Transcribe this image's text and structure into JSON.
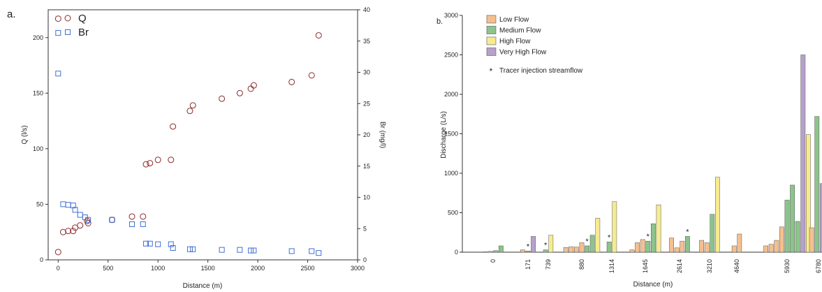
{
  "chart_data": [
    {
      "panel_label": "a.",
      "type": "scatter",
      "xlabel": "Distance (m)",
      "ylabel": "Q (l/s)",
      "y2label": "Br (mg/l)",
      "xlim": [
        -100,
        3000
      ],
      "ylim": [
        0,
        225
      ],
      "y2lim": [
        0,
        40
      ],
      "xticks": [
        0,
        500,
        1000,
        1500,
        2000,
        2500,
        3000
      ],
      "yticks": [
        0,
        50,
        100,
        150,
        200
      ],
      "y2ticks": [
        0,
        5,
        10,
        15,
        20,
        25,
        30,
        35,
        40
      ],
      "legend": "top-left",
      "series": [
        {
          "name": "Q",
          "axis": "left",
          "marker": "circle",
          "color": "#8b2a2a",
          "points": [
            [
              0,
              7
            ],
            [
              0,
              217
            ],
            [
              50,
              25
            ],
            [
              100,
              26
            ],
            [
              150,
              26
            ],
            [
              170,
              29
            ],
            [
              220,
              31
            ],
            [
              290,
              35
            ],
            [
              300,
              33
            ],
            [
              540,
              36
            ],
            [
              740,
              39
            ],
            [
              850,
              39
            ],
            [
              880,
              86
            ],
            [
              920,
              87
            ],
            [
              1000,
              90
            ],
            [
              1130,
              90
            ],
            [
              1150,
              120
            ],
            [
              1320,
              134
            ],
            [
              1350,
              139
            ],
            [
              1640,
              145
            ],
            [
              1820,
              150
            ],
            [
              1930,
              154
            ],
            [
              1960,
              157
            ],
            [
              2340,
              160
            ],
            [
              2540,
              166
            ],
            [
              2610,
              202
            ]
          ]
        },
        {
          "name": "Br",
          "axis": "right",
          "marker": "square",
          "color": "#3f6fd8",
          "points": [
            [
              0,
              36.3
            ],
            [
              0,
              29.8
            ],
            [
              50,
              8.9
            ],
            [
              100,
              8.8
            ],
            [
              150,
              8.7
            ],
            [
              170,
              8.0
            ],
            [
              220,
              7.2
            ],
            [
              270,
              6.8
            ],
            [
              300,
              6.4
            ],
            [
              540,
              6.4
            ],
            [
              740,
              5.7
            ],
            [
              850,
              5.7
            ],
            [
              880,
              2.6
            ],
            [
              920,
              2.6
            ],
            [
              1000,
              2.5
            ],
            [
              1130,
              2.5
            ],
            [
              1150,
              1.9
            ],
            [
              1320,
              1.7
            ],
            [
              1350,
              1.7
            ],
            [
              1640,
              1.6
            ],
            [
              1820,
              1.6
            ],
            [
              1930,
              1.5
            ],
            [
              1960,
              1.5
            ],
            [
              2340,
              1.4
            ],
            [
              2540,
              1.4
            ],
            [
              2610,
              1.1
            ]
          ]
        }
      ]
    },
    {
      "panel_label": "b.",
      "type": "bar",
      "xlabel": "Distance (m)",
      "ylabel": "Discharge (L/s)",
      "ylim": [
        0,
        3000
      ],
      "yticks": [
        0,
        500,
        1000,
        1500,
        2000,
        2500,
        3000
      ],
      "categories": [
        "0",
        "171",
        "739",
        "880",
        "1314",
        "1645",
        "2614",
        "3210",
        "4640",
        "5930",
        "6780"
      ],
      "series": [
        {
          "name": "Low Flow",
          "color": "#f5c08e"
        },
        {
          "name": "Medium Flow",
          "color": "#8cc48c"
        },
        {
          "name": "High Flow",
          "color": "#f7eb8f"
        },
        {
          "name": "Very High Flow",
          "color": "#b8a0cc"
        }
      ],
      "tracer_legend": "Tracer injection streamflow",
      "bars": [
        [
          0,
          0,
          5
        ],
        [
          0,
          0,
          10
        ],
        [
          0,
          1,
          20
        ],
        [
          0,
          1,
          80
        ],
        [
          1,
          0,
          30
        ],
        [
          1,
          1,
          15
        ],
        [
          1,
          3,
          200
        ],
        [
          2,
          1,
          30
        ],
        [
          2,
          2,
          215
        ],
        [
          3,
          0,
          60
        ],
        [
          3,
          0,
          70
        ],
        [
          3,
          0,
          65
        ],
        [
          3,
          0,
          120
        ],
        [
          3,
          1,
          80
        ],
        [
          3,
          1,
          215
        ],
        [
          3,
          2,
          430
        ],
        [
          4,
          1,
          130
        ],
        [
          4,
          2,
          640
        ],
        [
          5,
          0,
          30
        ],
        [
          5,
          0,
          120
        ],
        [
          5,
          0,
          160
        ],
        [
          5,
          1,
          140
        ],
        [
          5,
          1,
          360
        ],
        [
          5,
          2,
          600
        ],
        [
          6,
          0,
          180
        ],
        [
          6,
          0,
          55
        ],
        [
          6,
          0,
          140
        ],
        [
          6,
          1,
          200
        ],
        [
          7,
          0,
          150
        ],
        [
          7,
          0,
          120
        ],
        [
          7,
          1,
          480
        ],
        [
          7,
          2,
          950
        ],
        [
          8,
          0,
          80
        ],
        [
          8,
          0,
          230
        ],
        [
          9,
          0,
          80
        ],
        [
          9,
          0,
          100
        ],
        [
          9,
          0,
          150
        ],
        [
          9,
          0,
          320
        ],
        [
          9,
          1,
          660
        ],
        [
          9,
          1,
          850
        ],
        [
          9,
          1,
          390
        ],
        [
          9,
          3,
          2500
        ],
        [
          9,
          2,
          1490
        ],
        [
          10,
          0,
          310
        ],
        [
          10,
          1,
          1720
        ],
        [
          10,
          3,
          870
        ]
      ],
      "tracer_marks": [
        [
          1,
          1,
          15
        ],
        [
          2,
          1,
          30
        ],
        [
          3,
          1,
          80
        ],
        [
          4,
          1,
          130
        ],
        [
          5,
          1,
          140
        ],
        [
          6,
          1,
          200
        ]
      ]
    }
  ]
}
